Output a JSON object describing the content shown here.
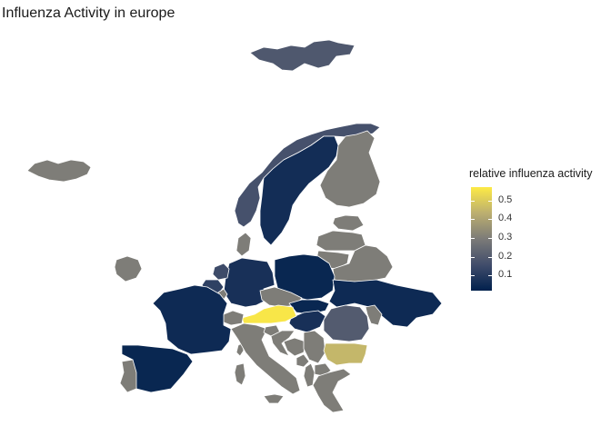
{
  "title": "Influenza Activity in europe",
  "legend": {
    "title": "relative influenza activity",
    "position": "right",
    "scale": "cividis",
    "colors": [
      "#00204d",
      "#414d6b",
      "#7c7b78",
      "#bcaf6f",
      "#fdea45"
    ],
    "range": [
      0.02,
      0.57
    ],
    "breaks": [
      "0.1",
      "0.2",
      "0.3",
      "0.4",
      "0.5"
    ]
  },
  "regions": [
    {
      "name": "Sweden",
      "value": 0.06
    },
    {
      "name": "Norway",
      "value": 0.17
    },
    {
      "name": "Svalbard",
      "value": 0.19
    },
    {
      "name": "Finland",
      "value": 0.3
    },
    {
      "name": "Iceland",
      "value": 0.3
    },
    {
      "name": "Ireland",
      "value": 0.3
    },
    {
      "name": "Estonia",
      "value": 0.3
    },
    {
      "name": "Latvia",
      "value": 0.3
    },
    {
      "name": "Lithuania",
      "value": 0.3
    },
    {
      "name": "Belarus",
      "value": 0.3
    },
    {
      "name": "Denmark",
      "value": 0.3
    },
    {
      "name": "Poland",
      "value": 0.04
    },
    {
      "name": "Germany",
      "value": 0.07
    },
    {
      "name": "Netherlands",
      "value": 0.15
    },
    {
      "name": "Belgium",
      "value": 0.12
    },
    {
      "name": "Luxembourg",
      "value": 0.3
    },
    {
      "name": "France",
      "value": 0.05
    },
    {
      "name": "Spain",
      "value": 0.04
    },
    {
      "name": "Portugal",
      "value": 0.3
    },
    {
      "name": "Switzerland",
      "value": 0.3
    },
    {
      "name": "Austria",
      "value": 0.56
    },
    {
      "name": "Czechia",
      "value": 0.3
    },
    {
      "name": "Slovakia",
      "value": 0.04
    },
    {
      "name": "Hungary",
      "value": 0.07
    },
    {
      "name": "Ukraine",
      "value": 0.05
    },
    {
      "name": "Moldova",
      "value": 0.3
    },
    {
      "name": "Romania",
      "value": 0.2
    },
    {
      "name": "Bulgaria",
      "value": 0.45
    },
    {
      "name": "Slovenia",
      "value": 0.3
    },
    {
      "name": "Croatia",
      "value": 0.3
    },
    {
      "name": "Bosnia",
      "value": 0.3
    },
    {
      "name": "Serbia",
      "value": 0.3
    },
    {
      "name": "Italy",
      "value": 0.3
    },
    {
      "name": "Greece",
      "value": 0.3
    },
    {
      "name": "North Macedonia",
      "value": 0.3
    },
    {
      "name": "Albania",
      "value": 0.3
    },
    {
      "name": "Montenegro",
      "value": 0.3
    },
    {
      "name": "Sicily",
      "value": 0.3
    },
    {
      "name": "Sardinia",
      "value": 0.3
    },
    {
      "name": "Corsica",
      "value": 0.3
    }
  ]
}
